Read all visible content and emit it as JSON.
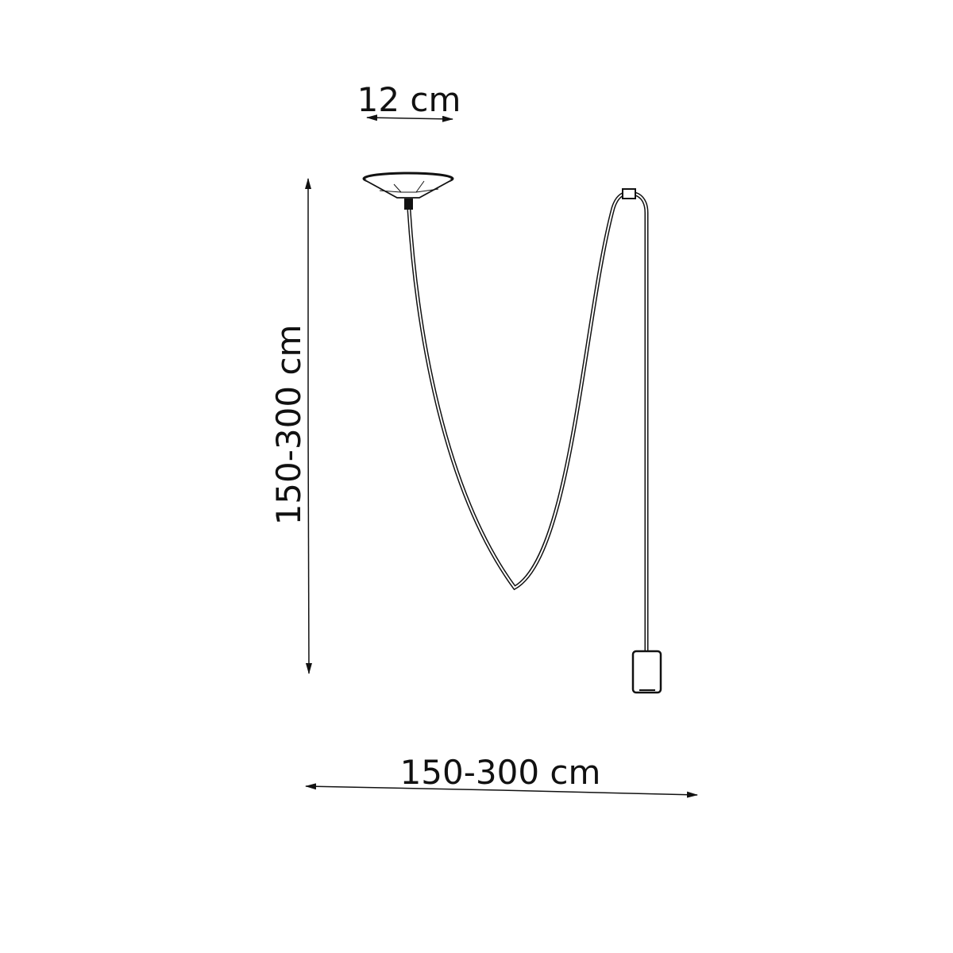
{
  "dimensions": {
    "canopy_width": "12 cm",
    "height": "150-300 cm",
    "width": "150-300 cm"
  },
  "colors": {
    "line": "#111111",
    "background": "#ffffff"
  }
}
